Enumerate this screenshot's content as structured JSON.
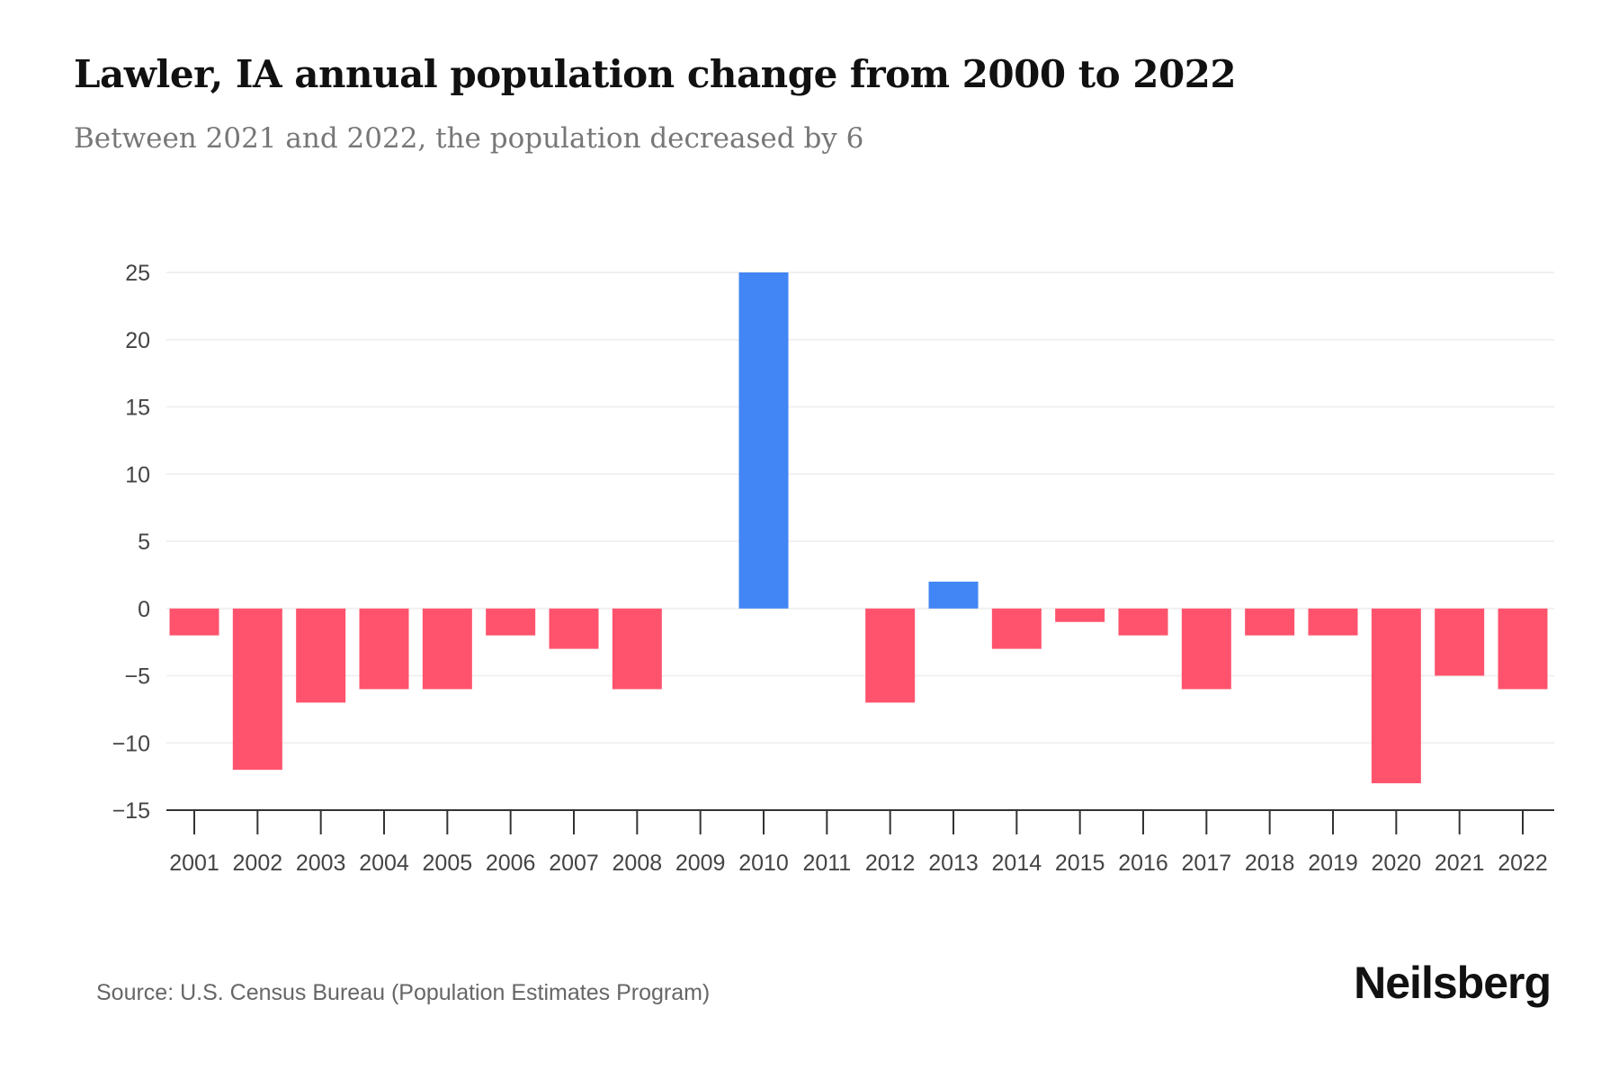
{
  "title": "Lawler, IA annual population change from 2000 to 2022",
  "subtitle": "Between 2021 and 2022, the population decreased by 6",
  "source": "Source: U.S. Census Bureau (Population Estimates Program)",
  "logo": "Neilsberg",
  "chart_data": {
    "type": "bar",
    "title": "Lawler, IA annual population change from 2000 to 2022",
    "xlabel": "",
    "ylabel": "",
    "ylim": [
      -15,
      25
    ],
    "yticks": [
      25,
      20,
      15,
      10,
      5,
      0,
      -5,
      -10,
      -15
    ],
    "ytick_labels": [
      "25",
      "20",
      "15",
      "10",
      "5",
      "0",
      "−5",
      "−10",
      "−15"
    ],
    "grid": true,
    "categories": [
      "2001",
      "2002",
      "2003",
      "2004",
      "2005",
      "2006",
      "2007",
      "2008",
      "2009",
      "2010",
      "2011",
      "2012",
      "2013",
      "2014",
      "2015",
      "2016",
      "2017",
      "2018",
      "2019",
      "2020",
      "2021",
      "2022"
    ],
    "values": [
      -2,
      -12,
      -7,
      -6,
      -6,
      -2,
      -3,
      -6,
      0,
      25,
      0,
      -7,
      2,
      -3,
      -1,
      -2,
      -6,
      -2,
      -2,
      -13,
      -5,
      -6
    ],
    "colors": {
      "positive": "#4285f4",
      "negative": "#ff536d"
    }
  }
}
